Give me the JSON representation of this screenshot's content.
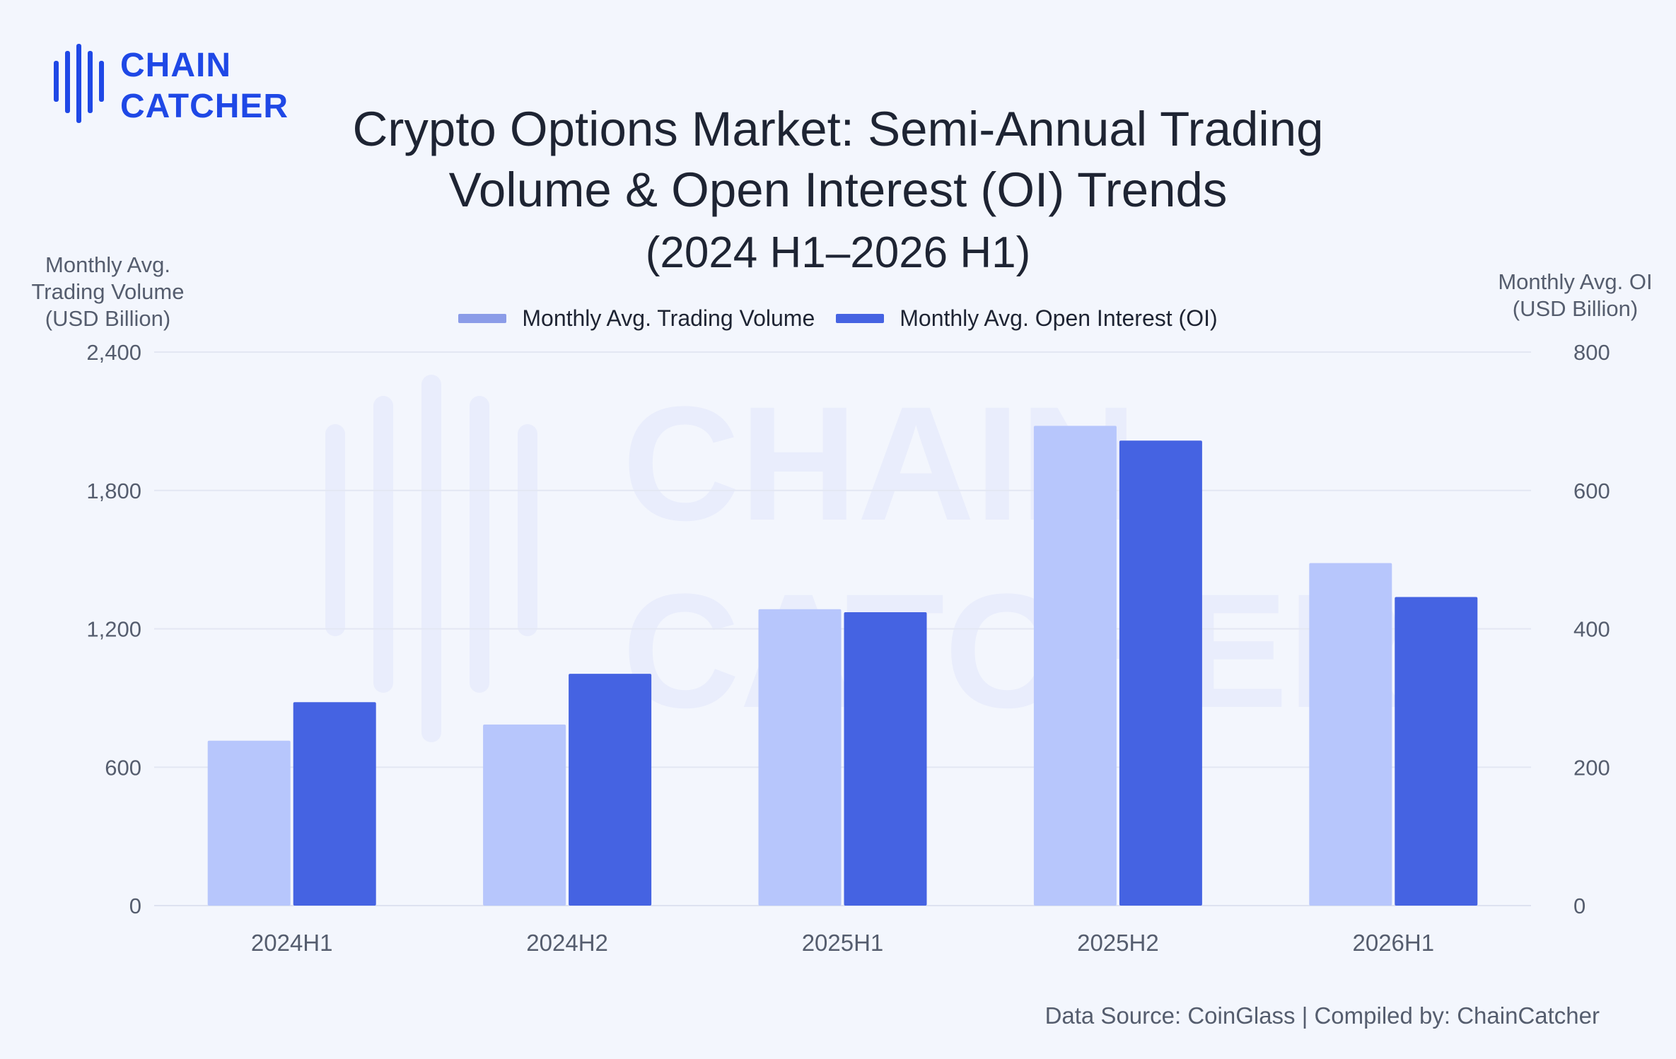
{
  "brand": {
    "line1": "CHAIN",
    "line2": "CATCHER",
    "color": "#1f48e6"
  },
  "watermark": {
    "line1": "CHAIN",
    "line2": "CATCHER"
  },
  "title": "Crypto Options Market: Semi-Annual Trading Volume & Open Interest (OI) Trends",
  "subtitle": "(2024 H1–2026 H1)",
  "left_axis_title": "Monthly Avg. Trading Volume (USD Billion)",
  "right_axis_title": "Monthly Avg. OI (USD Billion)",
  "legend": [
    {
      "label": "Monthly Avg. Trading Volume",
      "color": "#8b9ce8"
    },
    {
      "label": "Monthly Avg. Open Interest (OI)",
      "color": "#4563e2"
    }
  ],
  "source": "Data Source: CoinGlass | Compiled by: ChainCatcher",
  "chart_data": {
    "type": "bar",
    "categories": [
      "2024H1",
      "2024H2",
      "2025H1",
      "2025H2",
      "2026H1"
    ],
    "series": [
      {
        "name": "Monthly Avg. Trading Volume",
        "axis": "left",
        "color": "#b7c6fc",
        "values": [
          715,
          785,
          1285,
          2080,
          1485
        ]
      },
      {
        "name": "Monthly Avg. Open Interest (OI)",
        "axis": "right",
        "color": "#4563e2",
        "values": [
          294,
          335,
          424,
          672,
          446
        ]
      }
    ],
    "y_left": {
      "min": 0,
      "max": 2400,
      "ticks": [
        "0",
        "600",
        "1,200",
        "1,800",
        "2,400"
      ]
    },
    "y_right": {
      "min": 0,
      "max": 800,
      "ticks": [
        "0",
        "200",
        "400",
        "600",
        "800"
      ]
    },
    "grid": true,
    "legend_position": "top-center"
  }
}
